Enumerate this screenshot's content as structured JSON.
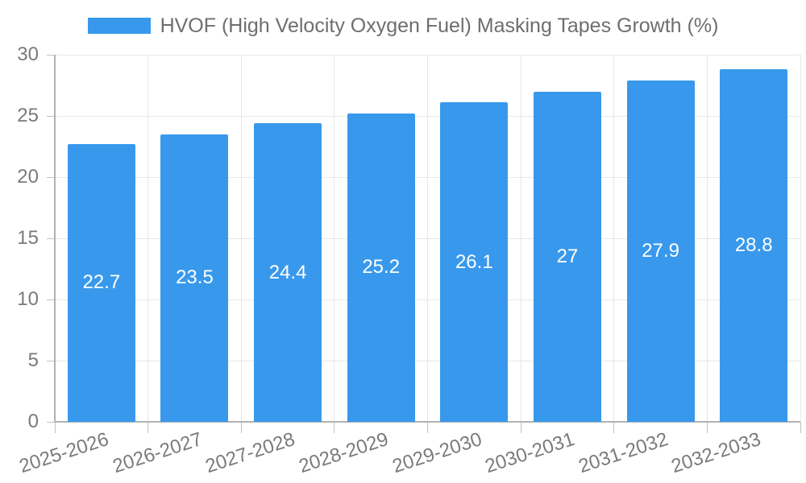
{
  "legend": {
    "label": "HVOF (High Velocity Oxygen Fuel) Masking Tapes Growth (%)"
  },
  "chart_data": {
    "type": "bar",
    "title": "HVOF (High Velocity Oxygen Fuel) Masking Tapes Growth (%)",
    "series_name": "HVOF (High Velocity Oxygen Fuel) Masking Tapes Growth (%)",
    "categories": [
      "2025-2026",
      "2026-2027",
      "2027-2028",
      "2028-2029",
      "2029-2030",
      "2030-2031",
      "2031-2032",
      "2032-2033"
    ],
    "values": [
      22.7,
      23.5,
      24.4,
      25.2,
      26.1,
      27,
      27.9,
      28.8
    ],
    "value_labels": [
      "22.7",
      "23.5",
      "24.4",
      "25.2",
      "26.1",
      "27",
      "27.9",
      "28.8"
    ],
    "xlabel": "",
    "ylabel": "",
    "ylim": [
      0,
      30
    ],
    "yticks": [
      0,
      5,
      10,
      15,
      20,
      25,
      30
    ],
    "grid": true,
    "legend_position": "top",
    "x_label_rotation": -18,
    "bar_color": "#3899ec",
    "value_label_color": "#ffffff",
    "axis_text_color": "#7a7a7a",
    "gridline_color": "#e7e7e7",
    "axis_line_color": "#b2b2b2"
  }
}
